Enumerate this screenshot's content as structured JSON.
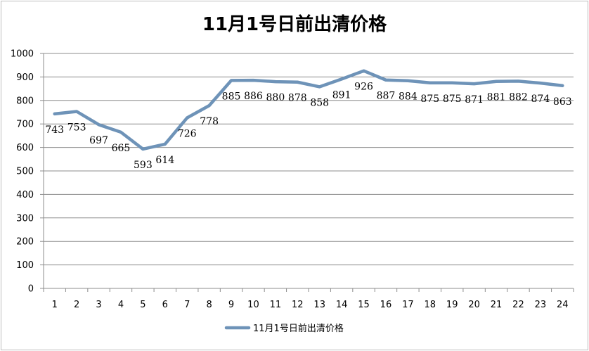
{
  "chart_data": {
    "type": "line",
    "title": "11月1号日前出清价格",
    "xlabel": "",
    "ylabel": "",
    "categories": [
      "1",
      "2",
      "3",
      "4",
      "5",
      "6",
      "7",
      "8",
      "9",
      "10",
      "11",
      "12",
      "13",
      "14",
      "15",
      "16",
      "17",
      "18",
      "19",
      "20",
      "21",
      "22",
      "23",
      "24"
    ],
    "series": [
      {
        "name": "11月1号日前出清价格",
        "values": [
          743,
          753,
          697,
          665,
          593,
          614,
          726,
          778,
          885,
          886,
          880,
          878,
          858,
          891,
          926,
          887,
          884,
          875,
          875,
          871,
          881,
          882,
          874,
          863
        ],
        "color": "#6e93b8"
      }
    ],
    "ylim": [
      0,
      1000
    ],
    "yticks": [
      0,
      100,
      200,
      300,
      400,
      500,
      600,
      700,
      800,
      900,
      1000
    ],
    "grid": true,
    "legend": "bottom"
  }
}
